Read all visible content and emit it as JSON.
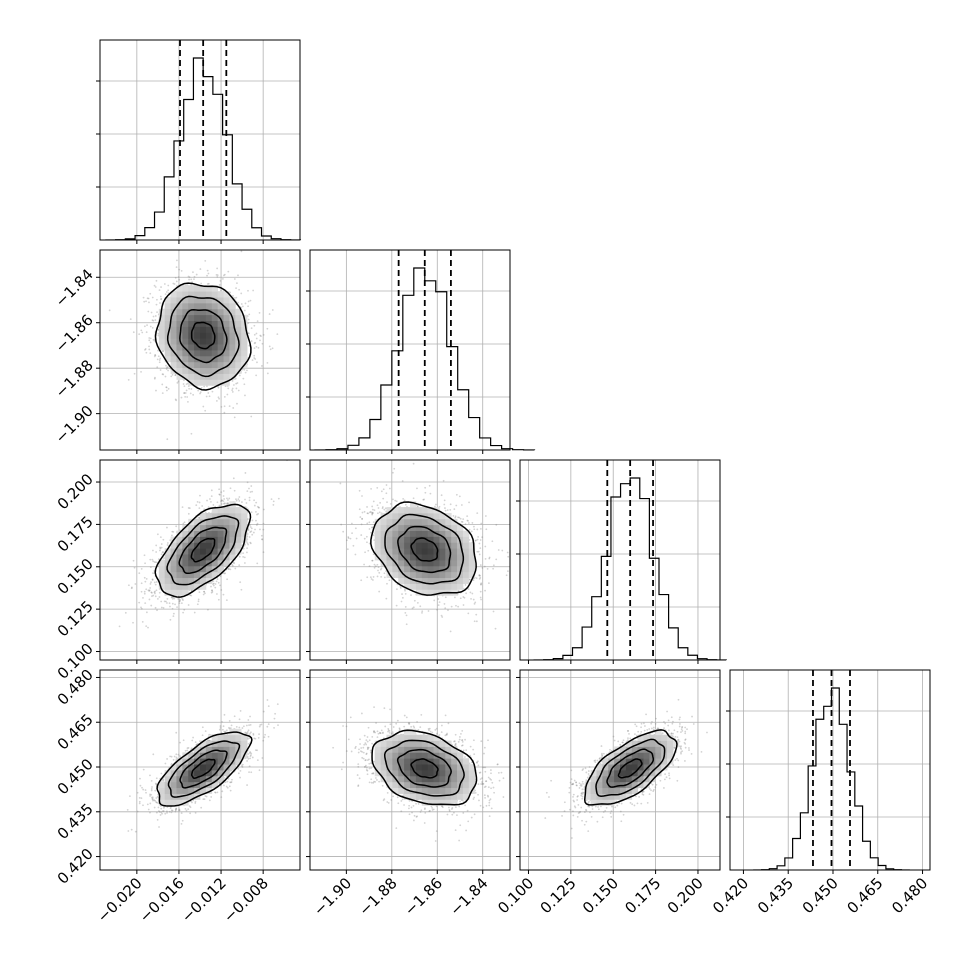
{
  "chart_data": {
    "type": "corner",
    "title": "",
    "parameters": [
      {
        "name": "",
        "range": [
          -0.0235,
          -0.0045
        ],
        "ticks": [
          -0.02,
          -0.016,
          -0.012,
          -0.008
        ],
        "tick_labels": [
          "−0.020",
          "−0.016",
          "−0.012",
          "−0.008"
        ],
        "mean": -0.0137,
        "sd": 0.0022,
        "quantiles": [
          -0.0159,
          -0.0137,
          -0.0115
        ]
      },
      {
        "name": "",
        "range": [
          -1.916,
          -1.828
        ],
        "ticks": [
          -1.9,
          -1.88,
          -1.86,
          -1.84
        ],
        "tick_labels": [
          "−1.90",
          "−1.88",
          "−1.86",
          "−1.84"
        ],
        "mean": -1.8655,
        "sd": 0.0115,
        "quantiles": [
          -1.877,
          -1.8655,
          -1.854
        ]
      },
      {
        "name": "",
        "range": [
          0.095,
          0.213
        ],
        "ticks": [
          0.1,
          0.125,
          0.15,
          0.175,
          0.2
        ],
        "tick_labels": [
          "0.100",
          "0.125",
          "0.150",
          "0.175",
          "0.200"
        ],
        "mean": 0.16,
        "sd": 0.0135,
        "quantiles": [
          0.1465,
          0.16,
          0.1735
        ]
      },
      {
        "name": "",
        "range": [
          0.4155,
          0.4825
        ],
        "ticks": [
          0.42,
          0.435,
          0.45,
          0.465,
          0.48
        ],
        "tick_labels": [
          "0.420",
          "0.435",
          "0.450",
          "0.465",
          "0.480"
        ],
        "mean": 0.4495,
        "sd": 0.0062,
        "quantiles": [
          0.4433,
          0.4495,
          0.4557
        ]
      }
    ],
    "correlations": [
      {
        "pair": [
          0,
          1
        ],
        "rho": -0.12
      },
      {
        "pair": [
          0,
          2
        ],
        "rho": 0.6
      },
      {
        "pair": [
          0,
          3
        ],
        "rho": 0.7
      },
      {
        "pair": [
          1,
          2
        ],
        "rho": -0.25
      },
      {
        "pair": [
          1,
          3
        ],
        "rho": -0.3
      },
      {
        "pair": [
          2,
          3
        ],
        "rho": 0.65
      }
    ],
    "grid": true,
    "quantile_line_style": "dashed",
    "histogram_bins": 20,
    "colors": {
      "line": "#000000",
      "grid": "#b0b0b0",
      "scatter": "#808080",
      "density_max": "#404040"
    }
  }
}
